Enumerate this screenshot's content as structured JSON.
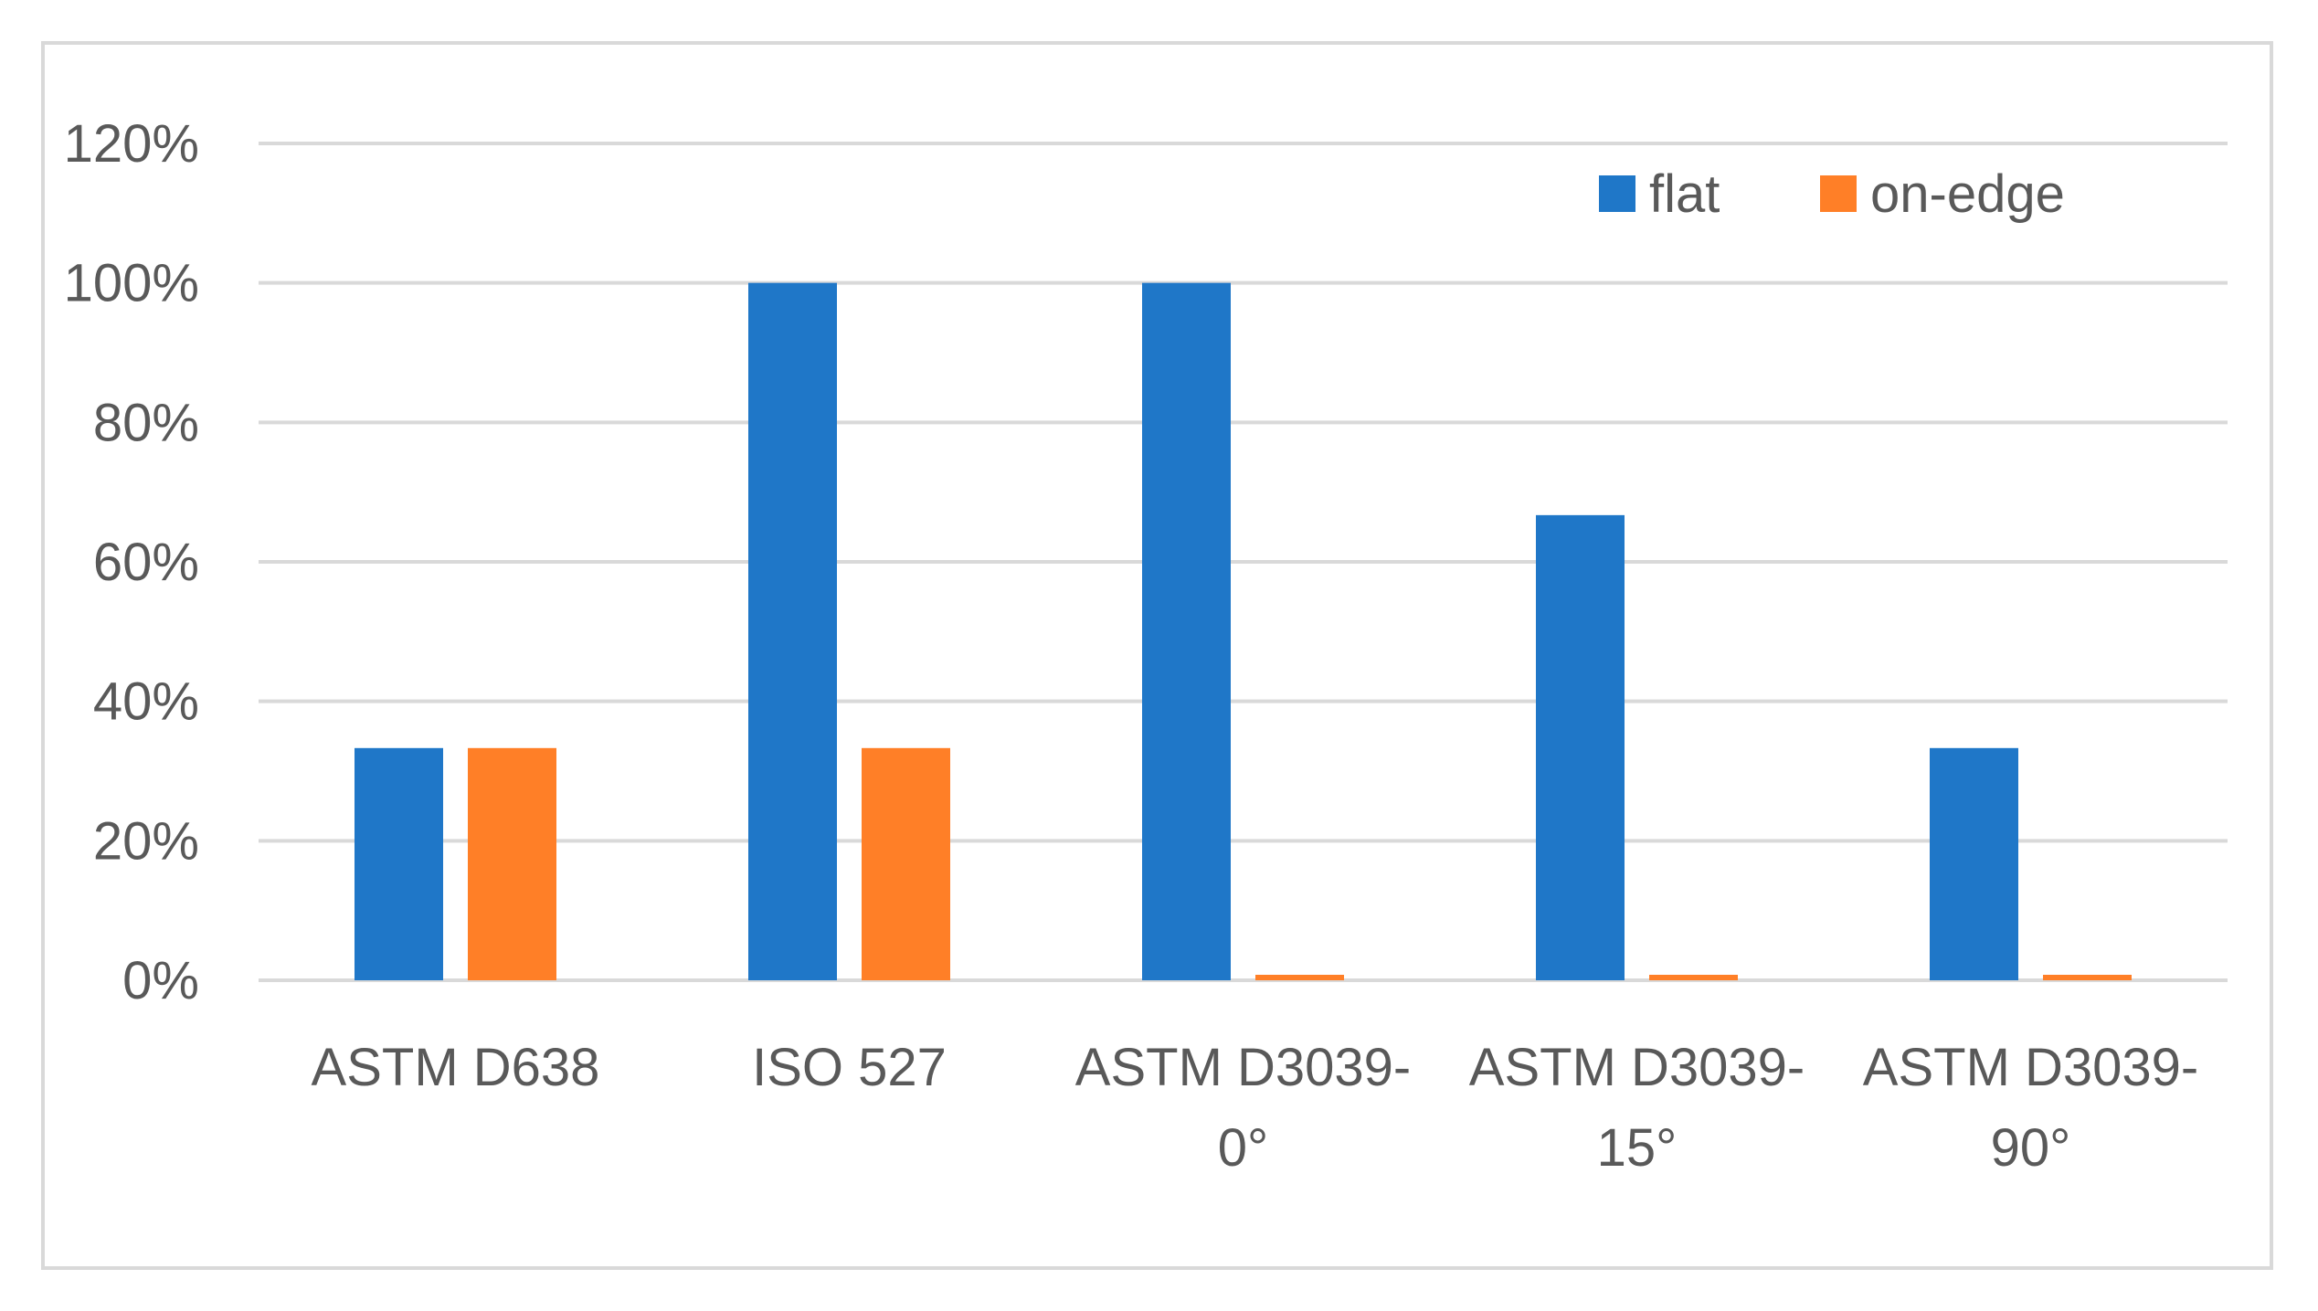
{
  "chart_data": {
    "type": "bar",
    "title": "",
    "xlabel": "",
    "ylabel": "",
    "categories": [
      [
        "ASTM D638"
      ],
      [
        "ISO 527"
      ],
      [
        "ASTM D3039-",
        "0°"
      ],
      [
        "ASTM D3039-",
        "15°"
      ],
      [
        "ASTM D3039-",
        "90°"
      ]
    ],
    "series": [
      {
        "name": "flat",
        "color": "#1f77c8",
        "values": [
          0.333,
          1.0,
          1.0,
          0.667,
          0.333
        ]
      },
      {
        "name": "on-edge",
        "color": "#ff7f27",
        "values": [
          0.333,
          0.333,
          0.0,
          0.0,
          0.0
        ]
      }
    ],
    "ylim": [
      0,
      1.2
    ],
    "yticks": [
      0,
      0.2,
      0.4,
      0.6,
      0.8,
      1.0,
      1.2
    ],
    "ytick_labels": [
      "0%",
      "20%",
      "40%",
      "60%",
      "80%",
      "100%",
      "120%"
    ],
    "grid": true,
    "legend_position": "top-right",
    "gridline_color": "#d9d9d9",
    "text_color": "#595959"
  }
}
